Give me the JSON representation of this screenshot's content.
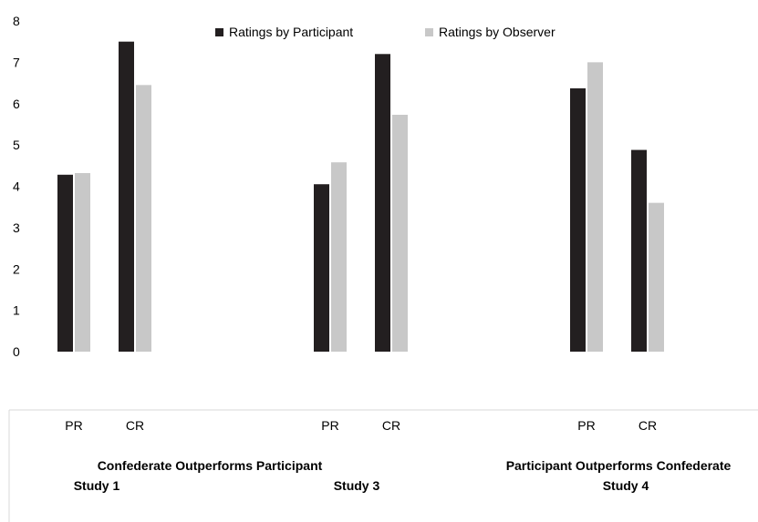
{
  "chart_data": {
    "type": "bar",
    "title": "",
    "xlabel": "",
    "ylabel": "",
    "ylim": [
      0,
      8
    ],
    "yticks": [
      "0",
      "1",
      "2",
      "3",
      "4",
      "5",
      "6",
      "7",
      "8"
    ],
    "grid": false,
    "legend_position": "top",
    "series": [
      {
        "name": "Ratings by Participant",
        "color": "#231f20"
      },
      {
        "name": "Ratings by Observer",
        "color": "#c8c8c8"
      }
    ],
    "categories": [
      {
        "label": "PR",
        "values": [
          4.28,
          4.32
        ]
      },
      {
        "label": "CR",
        "values": [
          7.5,
          6.45
        ]
      },
      {
        "label": "PR",
        "values": [
          4.05,
          4.58
        ]
      },
      {
        "label": "CR",
        "values": [
          7.2,
          5.73
        ]
      },
      {
        "label": "PR",
        "values": [
          6.37,
          7.0
        ]
      },
      {
        "label": "CR",
        "values": [
          4.88,
          3.6
        ]
      }
    ],
    "group_labels": [
      {
        "line1": "Confederate Outperforms Participant",
        "line2": "Study 1"
      },
      {
        "line1": "",
        "line2": "Study 3"
      },
      {
        "line1": "Participant Outperforms Confederate",
        "line2": "Study 4"
      }
    ]
  }
}
